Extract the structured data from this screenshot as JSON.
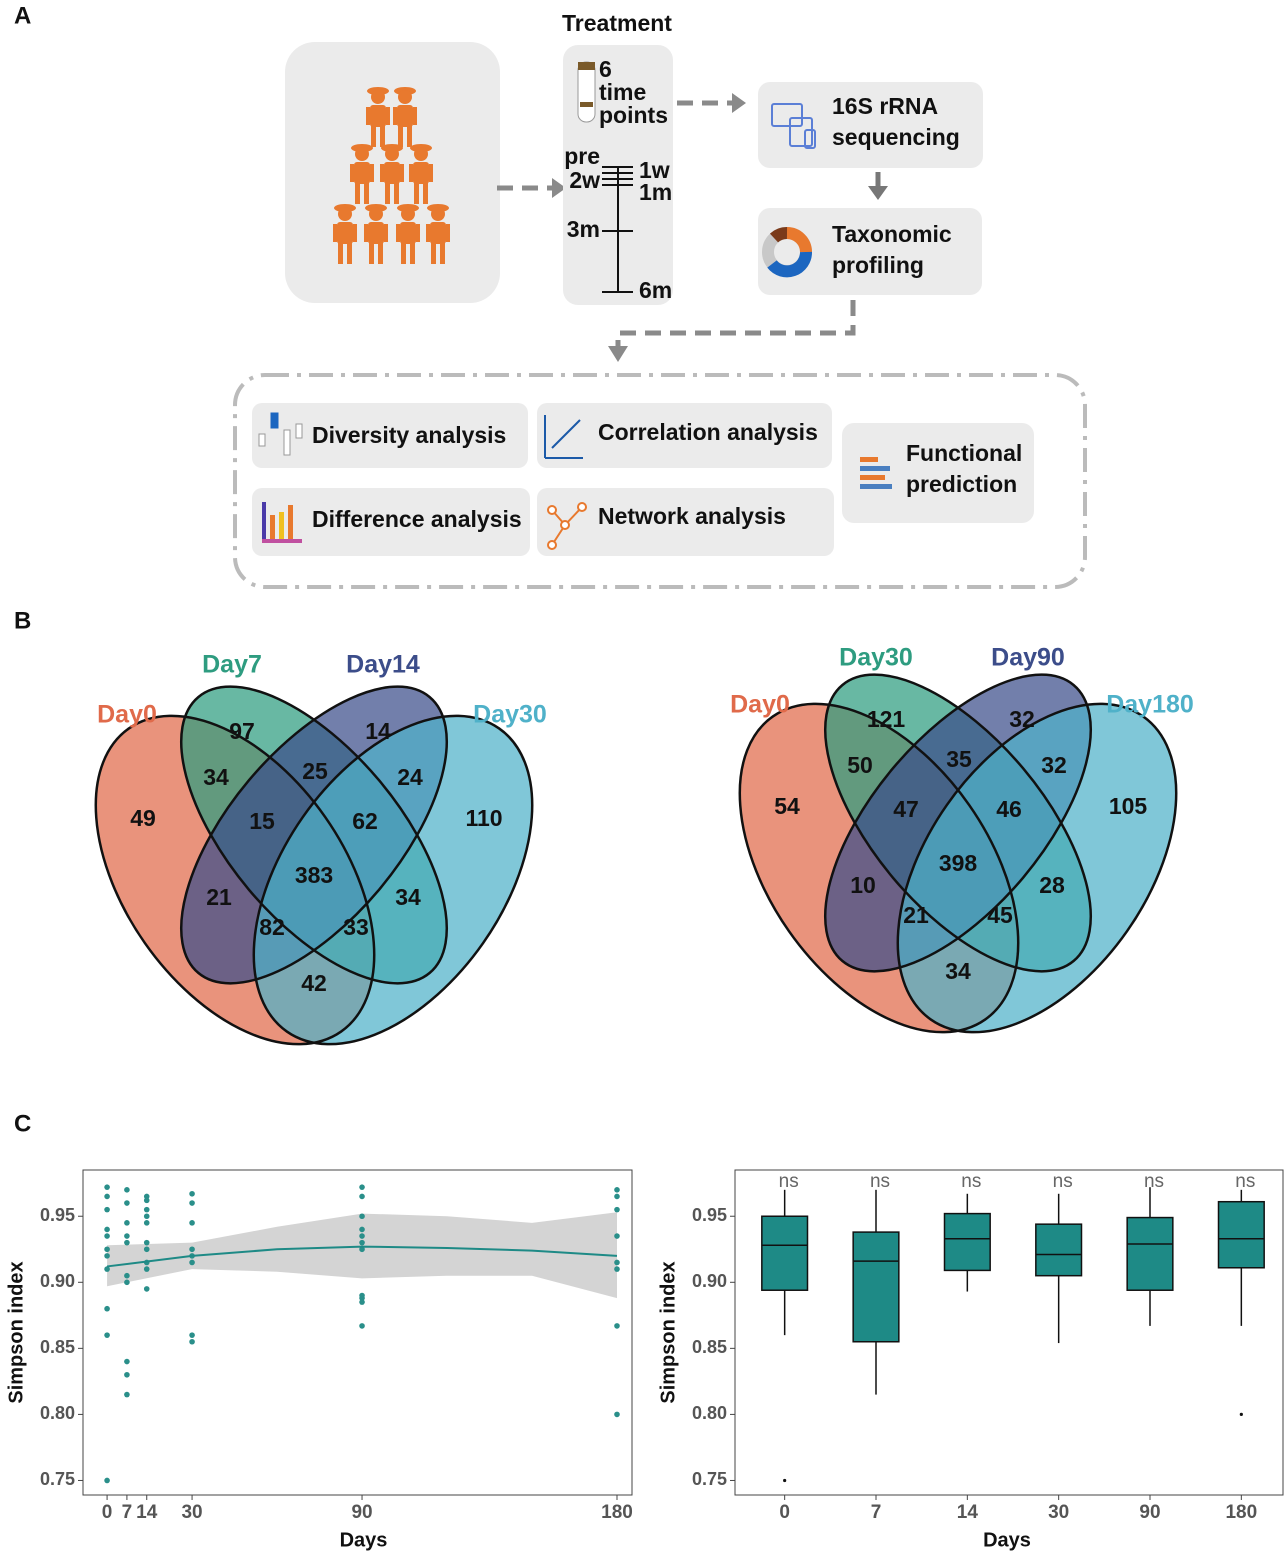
{
  "panel_labels": [
    "A",
    "B",
    "C"
  ],
  "workflow": {
    "treatment": "Treatment",
    "timepoints": [
      "6",
      "time",
      "points"
    ],
    "timeline_left": [
      "pre",
      "2w",
      "3m"
    ],
    "timeline_right": [
      "1w",
      "1m",
      "6m"
    ],
    "sequencing": [
      "16S rRNA",
      "sequencing"
    ],
    "profiling": [
      "Taxonomic",
      "profiling"
    ],
    "analyses": [
      "Diversity analysis",
      "Correlation analysis",
      "Difference analysis",
      "Network analysis"
    ],
    "functional": [
      "Functional",
      "prediction"
    ]
  },
  "venn": [
    {
      "sets": [
        {
          "name": "Day0",
          "color": "#e06a4a"
        },
        {
          "name": "Day7",
          "color": "#2e9c80"
        },
        {
          "name": "Day14",
          "color": "#3c4d8a"
        },
        {
          "name": "Day30",
          "color": "#4fb1c9"
        }
      ],
      "counts": [
        97,
        14,
        34,
        25,
        24,
        49,
        15,
        62,
        110,
        383,
        21,
        34,
        82,
        33,
        42
      ]
    },
    {
      "sets": [
        {
          "name": "Day0",
          "color": "#e06a4a"
        },
        {
          "name": "Day30",
          "color": "#2e9c80"
        },
        {
          "name": "Day90",
          "color": "#3c4d8a"
        },
        {
          "name": "Day180",
          "color": "#4fb1c9"
        }
      ],
      "counts": [
        121,
        32,
        50,
        35,
        32,
        54,
        47,
        46,
        105,
        398,
        10,
        28,
        21,
        45,
        34
      ]
    }
  ],
  "chart_data": [
    {
      "type": "scatter",
      "x_label": "Days",
      "y_label": "Simpson index",
      "color": "#2a8f8a",
      "x": [
        0,
        0,
        0,
        0,
        0,
        0,
        0,
        0,
        0,
        0,
        0,
        7,
        7,
        7,
        7,
        7,
        7,
        7,
        7,
        7,
        7,
        14,
        14,
        14,
        14,
        14,
        14,
        14,
        14,
        14,
        14,
        30,
        30,
        30,
        30,
        30,
        30,
        30,
        30,
        90,
        90,
        90,
        90,
        90,
        90,
        90,
        90,
        90,
        90,
        90,
        180,
        180,
        180,
        180,
        180,
        180,
        180,
        180
      ],
      "y": [
        0.972,
        0.965,
        0.955,
        0.94,
        0.935,
        0.925,
        0.92,
        0.91,
        0.88,
        0.86,
        0.75,
        0.97,
        0.96,
        0.945,
        0.935,
        0.93,
        0.905,
        0.9,
        0.84,
        0.83,
        0.815,
        0.965,
        0.962,
        0.955,
        0.95,
        0.945,
        0.93,
        0.925,
        0.915,
        0.91,
        0.895,
        0.967,
        0.96,
        0.945,
        0.925,
        0.92,
        0.915,
        0.86,
        0.855,
        0.972,
        0.965,
        0.95,
        0.94,
        0.935,
        0.93,
        0.925,
        0.89,
        0.888,
        0.885,
        0.867,
        0.97,
        0.965,
        0.955,
        0.935,
        0.915,
        0.91,
        0.867,
        0.8
      ],
      "smooth": {
        "x": [
          0,
          30,
          60,
          90,
          120,
          150,
          180
        ],
        "y": [
          0.912,
          0.92,
          0.925,
          0.927,
          0.926,
          0.924,
          0.92
        ],
        "lower": [
          0.897,
          0.91,
          0.908,
          0.903,
          0.905,
          0.905,
          0.888
        ],
        "upper": [
          0.928,
          0.93,
          0.942,
          0.952,
          0.95,
          0.945,
          0.953
        ],
        "color": "#1e8a86",
        "band_color": "#d4d4d4"
      },
      "xlim": [
        -8.5,
        185.3
      ],
      "xticks": [
        0,
        7,
        14,
        30,
        90,
        180
      ],
      "ylim": [
        0.739,
        0.985
      ],
      "yticks": [
        0.75,
        {
          "value": 0.8,
          "label": "0.80"
        },
        0.85,
        {
          "value": 0.9,
          "label": "0.90"
        },
        0.95
      ]
    },
    {
      "type": "box",
      "x_label": "Days",
      "y_label": "Simpson index",
      "color": "#1e8a86",
      "categories": [
        "0",
        "7",
        "14",
        "30",
        "90",
        "180"
      ],
      "whisker_low": [
        0.86,
        0.815,
        0.893,
        0.854,
        0.867,
        0.867
      ],
      "q1": [
        0.894,
        0.855,
        0.909,
        0.905,
        0.894,
        0.911
      ],
      "median": [
        0.928,
        0.916,
        0.933,
        0.921,
        0.929,
        0.933
      ],
      "q3": [
        0.95,
        0.938,
        0.952,
        0.944,
        0.949,
        0.961
      ],
      "whisker_high": [
        0.97,
        0.97,
        0.967,
        0.967,
        0.972,
        0.97
      ],
      "outliers": [
        [
          0.75
        ],
        [],
        [],
        [],
        [],
        [
          0.8
        ]
      ],
      "annotations": [
        "ns",
        "ns",
        "ns",
        "ns",
        "ns",
        "ns"
      ],
      "ylim": [
        0.739,
        0.985
      ],
      "yticks": [
        0.75,
        {
          "value": 0.8,
          "label": "0.80"
        },
        0.85,
        {
          "value": 0.9,
          "label": "0.90"
        },
        0.95
      ]
    }
  ]
}
